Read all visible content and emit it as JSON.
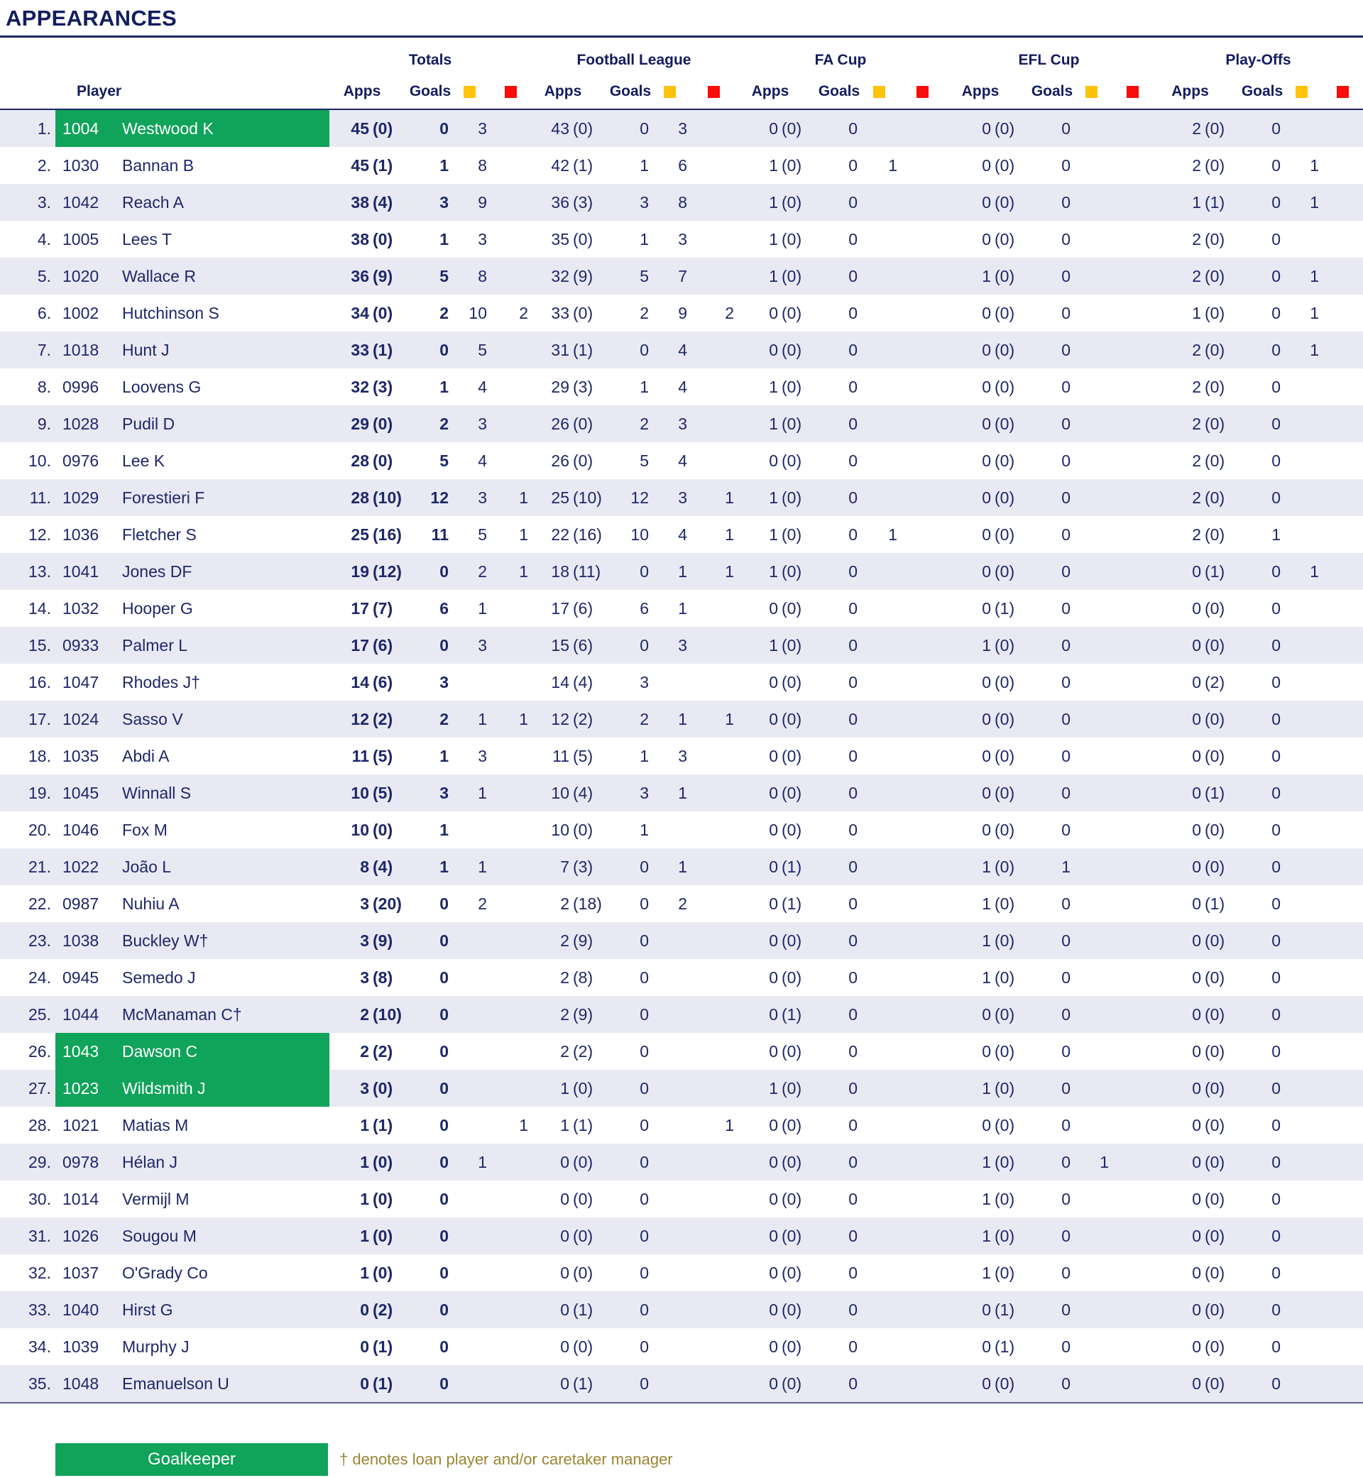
{
  "title": "APPEARANCES",
  "header": {
    "player_label": "Player",
    "apps_label": "Apps",
    "goals_label": "Goals",
    "yellow_card_color": "#fec20a",
    "red_card_color": "#f90d0a",
    "groups": [
      "Totals",
      "Football League",
      "FA Cup",
      "EFL Cup",
      "Play-Offs"
    ]
  },
  "colors": {
    "navy_text": "#1e2769",
    "navy_dark": "#131c5e",
    "row_stripe": "#e9e9f4",
    "goalkeeper_green": "#10a35a",
    "legend_gold": "#9c8532"
  },
  "legend": {
    "goalkeeper_label": "Goalkeeper",
    "note": "† denotes loan player and/or caretaker manager"
  },
  "players": [
    {
      "rank": "1.",
      "id": "1004",
      "name": "Westwood K",
      "gk": true,
      "t": [
        "45",
        "(0)",
        "0",
        "3",
        ""
      ],
      "fl": [
        "43",
        "(0)",
        "0",
        "3",
        ""
      ],
      "fa": [
        "0",
        "(0)",
        "0",
        "",
        ""
      ],
      "efl": [
        "0",
        "(0)",
        "0",
        "",
        ""
      ],
      "po": [
        "2",
        "(0)",
        "0",
        "",
        ""
      ]
    },
    {
      "rank": "2.",
      "id": "1030",
      "name": "Bannan B",
      "gk": false,
      "t": [
        "45",
        "(1)",
        "1",
        "8",
        ""
      ],
      "fl": [
        "42",
        "(1)",
        "1",
        "6",
        ""
      ],
      "fa": [
        "1",
        "(0)",
        "0",
        "1",
        ""
      ],
      "efl": [
        "0",
        "(0)",
        "0",
        "",
        ""
      ],
      "po": [
        "2",
        "(0)",
        "0",
        "1",
        ""
      ]
    },
    {
      "rank": "3.",
      "id": "1042",
      "name": "Reach A",
      "gk": false,
      "t": [
        "38",
        "(4)",
        "3",
        "9",
        ""
      ],
      "fl": [
        "36",
        "(3)",
        "3",
        "8",
        ""
      ],
      "fa": [
        "1",
        "(0)",
        "0",
        "",
        ""
      ],
      "efl": [
        "0",
        "(0)",
        "0",
        "",
        ""
      ],
      "po": [
        "1",
        "(1)",
        "0",
        "1",
        ""
      ]
    },
    {
      "rank": "4.",
      "id": "1005",
      "name": "Lees T",
      "gk": false,
      "t": [
        "38",
        "(0)",
        "1",
        "3",
        ""
      ],
      "fl": [
        "35",
        "(0)",
        "1",
        "3",
        ""
      ],
      "fa": [
        "1",
        "(0)",
        "0",
        "",
        ""
      ],
      "efl": [
        "0",
        "(0)",
        "0",
        "",
        ""
      ],
      "po": [
        "2",
        "(0)",
        "0",
        "",
        ""
      ]
    },
    {
      "rank": "5.",
      "id": "1020",
      "name": "Wallace R",
      "gk": false,
      "t": [
        "36",
        "(9)",
        "5",
        "8",
        ""
      ],
      "fl": [
        "32",
        "(9)",
        "5",
        "7",
        ""
      ],
      "fa": [
        "1",
        "(0)",
        "0",
        "",
        ""
      ],
      "efl": [
        "1",
        "(0)",
        "0",
        "",
        ""
      ],
      "po": [
        "2",
        "(0)",
        "0",
        "1",
        ""
      ]
    },
    {
      "rank": "6.",
      "id": "1002",
      "name": "Hutchinson S",
      "gk": false,
      "t": [
        "34",
        "(0)",
        "2",
        "10",
        "2"
      ],
      "fl": [
        "33",
        "(0)",
        "2",
        "9",
        "2"
      ],
      "fa": [
        "0",
        "(0)",
        "0",
        "",
        ""
      ],
      "efl": [
        "0",
        "(0)",
        "0",
        "",
        ""
      ],
      "po": [
        "1",
        "(0)",
        "0",
        "1",
        ""
      ]
    },
    {
      "rank": "7.",
      "id": "1018",
      "name": "Hunt J",
      "gk": false,
      "t": [
        "33",
        "(1)",
        "0",
        "5",
        ""
      ],
      "fl": [
        "31",
        "(1)",
        "0",
        "4",
        ""
      ],
      "fa": [
        "0",
        "(0)",
        "0",
        "",
        ""
      ],
      "efl": [
        "0",
        "(0)",
        "0",
        "",
        ""
      ],
      "po": [
        "2",
        "(0)",
        "0",
        "1",
        ""
      ]
    },
    {
      "rank": "8.",
      "id": "0996",
      "name": "Loovens G",
      "gk": false,
      "t": [
        "32",
        "(3)",
        "1",
        "4",
        ""
      ],
      "fl": [
        "29",
        "(3)",
        "1",
        "4",
        ""
      ],
      "fa": [
        "1",
        "(0)",
        "0",
        "",
        ""
      ],
      "efl": [
        "0",
        "(0)",
        "0",
        "",
        ""
      ],
      "po": [
        "2",
        "(0)",
        "0",
        "",
        ""
      ]
    },
    {
      "rank": "9.",
      "id": "1028",
      "name": "Pudil D",
      "gk": false,
      "t": [
        "29",
        "(0)",
        "2",
        "3",
        ""
      ],
      "fl": [
        "26",
        "(0)",
        "2",
        "3",
        ""
      ],
      "fa": [
        "1",
        "(0)",
        "0",
        "",
        ""
      ],
      "efl": [
        "0",
        "(0)",
        "0",
        "",
        ""
      ],
      "po": [
        "2",
        "(0)",
        "0",
        "",
        ""
      ]
    },
    {
      "rank": "10.",
      "id": "0976",
      "name": "Lee K",
      "gk": false,
      "t": [
        "28",
        "(0)",
        "5",
        "4",
        ""
      ],
      "fl": [
        "26",
        "(0)",
        "5",
        "4",
        ""
      ],
      "fa": [
        "0",
        "(0)",
        "0",
        "",
        ""
      ],
      "efl": [
        "0",
        "(0)",
        "0",
        "",
        ""
      ],
      "po": [
        "2",
        "(0)",
        "0",
        "",
        ""
      ]
    },
    {
      "rank": "11.",
      "id": "1029",
      "name": "Forestieri F",
      "gk": false,
      "t": [
        "28",
        "(10)",
        "12",
        "3",
        "1"
      ],
      "fl": [
        "25",
        "(10)",
        "12",
        "3",
        "1"
      ],
      "fa": [
        "1",
        "(0)",
        "0",
        "",
        ""
      ],
      "efl": [
        "0",
        "(0)",
        "0",
        "",
        ""
      ],
      "po": [
        "2",
        "(0)",
        "0",
        "",
        ""
      ]
    },
    {
      "rank": "12.",
      "id": "1036",
      "name": "Fletcher S",
      "gk": false,
      "t": [
        "25",
        "(16)",
        "11",
        "5",
        "1"
      ],
      "fl": [
        "22",
        "(16)",
        "10",
        "4",
        "1"
      ],
      "fa": [
        "1",
        "(0)",
        "0",
        "1",
        ""
      ],
      "efl": [
        "0",
        "(0)",
        "0",
        "",
        ""
      ],
      "po": [
        "2",
        "(0)",
        "1",
        "",
        ""
      ]
    },
    {
      "rank": "13.",
      "id": "1041",
      "name": "Jones DF",
      "gk": false,
      "t": [
        "19",
        "(12)",
        "0",
        "2",
        "1"
      ],
      "fl": [
        "18",
        "(11)",
        "0",
        "1",
        "1"
      ],
      "fa": [
        "1",
        "(0)",
        "0",
        "",
        ""
      ],
      "efl": [
        "0",
        "(0)",
        "0",
        "",
        ""
      ],
      "po": [
        "0",
        "(1)",
        "0",
        "1",
        ""
      ]
    },
    {
      "rank": "14.",
      "id": "1032",
      "name": "Hooper G",
      "gk": false,
      "t": [
        "17",
        "(7)",
        "6",
        "1",
        ""
      ],
      "fl": [
        "17",
        "(6)",
        "6",
        "1",
        ""
      ],
      "fa": [
        "0",
        "(0)",
        "0",
        "",
        ""
      ],
      "efl": [
        "0",
        "(1)",
        "0",
        "",
        ""
      ],
      "po": [
        "0",
        "(0)",
        "0",
        "",
        ""
      ]
    },
    {
      "rank": "15.",
      "id": "0933",
      "name": "Palmer L",
      "gk": false,
      "t": [
        "17",
        "(6)",
        "0",
        "3",
        ""
      ],
      "fl": [
        "15",
        "(6)",
        "0",
        "3",
        ""
      ],
      "fa": [
        "1",
        "(0)",
        "0",
        "",
        ""
      ],
      "efl": [
        "1",
        "(0)",
        "0",
        "",
        ""
      ],
      "po": [
        "0",
        "(0)",
        "0",
        "",
        ""
      ]
    },
    {
      "rank": "16.",
      "id": "1047",
      "name": "Rhodes J†",
      "gk": false,
      "t": [
        "14",
        "(6)",
        "3",
        "",
        ""
      ],
      "fl": [
        "14",
        "(4)",
        "3",
        "",
        ""
      ],
      "fa": [
        "0",
        "(0)",
        "0",
        "",
        ""
      ],
      "efl": [
        "0",
        "(0)",
        "0",
        "",
        ""
      ],
      "po": [
        "0",
        "(2)",
        "0",
        "",
        ""
      ]
    },
    {
      "rank": "17.",
      "id": "1024",
      "name": "Sasso V",
      "gk": false,
      "t": [
        "12",
        "(2)",
        "2",
        "1",
        "1"
      ],
      "fl": [
        "12",
        "(2)",
        "2",
        "1",
        "1"
      ],
      "fa": [
        "0",
        "(0)",
        "0",
        "",
        ""
      ],
      "efl": [
        "0",
        "(0)",
        "0",
        "",
        ""
      ],
      "po": [
        "0",
        "(0)",
        "0",
        "",
        ""
      ]
    },
    {
      "rank": "18.",
      "id": "1035",
      "name": "Abdi A",
      "gk": false,
      "t": [
        "11",
        "(5)",
        "1",
        "3",
        ""
      ],
      "fl": [
        "11",
        "(5)",
        "1",
        "3",
        ""
      ],
      "fa": [
        "0",
        "(0)",
        "0",
        "",
        ""
      ],
      "efl": [
        "0",
        "(0)",
        "0",
        "",
        ""
      ],
      "po": [
        "0",
        "(0)",
        "0",
        "",
        ""
      ]
    },
    {
      "rank": "19.",
      "id": "1045",
      "name": "Winnall S",
      "gk": false,
      "t": [
        "10",
        "(5)",
        "3",
        "1",
        ""
      ],
      "fl": [
        "10",
        "(4)",
        "3",
        "1",
        ""
      ],
      "fa": [
        "0",
        "(0)",
        "0",
        "",
        ""
      ],
      "efl": [
        "0",
        "(0)",
        "0",
        "",
        ""
      ],
      "po": [
        "0",
        "(1)",
        "0",
        "",
        ""
      ]
    },
    {
      "rank": "20.",
      "id": "1046",
      "name": "Fox M",
      "gk": false,
      "t": [
        "10",
        "(0)",
        "1",
        "",
        ""
      ],
      "fl": [
        "10",
        "(0)",
        "1",
        "",
        ""
      ],
      "fa": [
        "0",
        "(0)",
        "0",
        "",
        ""
      ],
      "efl": [
        "0",
        "(0)",
        "0",
        "",
        ""
      ],
      "po": [
        "0",
        "(0)",
        "0",
        "",
        ""
      ]
    },
    {
      "rank": "21.",
      "id": "1022",
      "name": "João L",
      "gk": false,
      "t": [
        "8",
        "(4)",
        "1",
        "1",
        ""
      ],
      "fl": [
        "7",
        "(3)",
        "0",
        "1",
        ""
      ],
      "fa": [
        "0",
        "(1)",
        "0",
        "",
        ""
      ],
      "efl": [
        "1",
        "(0)",
        "1",
        "",
        ""
      ],
      "po": [
        "0",
        "(0)",
        "0",
        "",
        ""
      ]
    },
    {
      "rank": "22.",
      "id": "0987",
      "name": "Nuhiu A",
      "gk": false,
      "t": [
        "3",
        "(20)",
        "0",
        "2",
        ""
      ],
      "fl": [
        "2",
        "(18)",
        "0",
        "2",
        ""
      ],
      "fa": [
        "0",
        "(1)",
        "0",
        "",
        ""
      ],
      "efl": [
        "1",
        "(0)",
        "0",
        "",
        ""
      ],
      "po": [
        "0",
        "(1)",
        "0",
        "",
        ""
      ]
    },
    {
      "rank": "23.",
      "id": "1038",
      "name": "Buckley W†",
      "gk": false,
      "t": [
        "3",
        "(9)",
        "0",
        "",
        ""
      ],
      "fl": [
        "2",
        "(9)",
        "0",
        "",
        ""
      ],
      "fa": [
        "0",
        "(0)",
        "0",
        "",
        ""
      ],
      "efl": [
        "1",
        "(0)",
        "0",
        "",
        ""
      ],
      "po": [
        "0",
        "(0)",
        "0",
        "",
        ""
      ]
    },
    {
      "rank": "24.",
      "id": "0945",
      "name": "Semedo J",
      "gk": false,
      "t": [
        "3",
        "(8)",
        "0",
        "",
        ""
      ],
      "fl": [
        "2",
        "(8)",
        "0",
        "",
        ""
      ],
      "fa": [
        "0",
        "(0)",
        "0",
        "",
        ""
      ],
      "efl": [
        "1",
        "(0)",
        "0",
        "",
        ""
      ],
      "po": [
        "0",
        "(0)",
        "0",
        "",
        ""
      ]
    },
    {
      "rank": "25.",
      "id": "1044",
      "name": "McManaman C†",
      "gk": false,
      "t": [
        "2",
        "(10)",
        "0",
        "",
        ""
      ],
      "fl": [
        "2",
        "(9)",
        "0",
        "",
        ""
      ],
      "fa": [
        "0",
        "(1)",
        "0",
        "",
        ""
      ],
      "efl": [
        "0",
        "(0)",
        "0",
        "",
        ""
      ],
      "po": [
        "0",
        "(0)",
        "0",
        "",
        ""
      ]
    },
    {
      "rank": "26.",
      "id": "1043",
      "name": "Dawson C",
      "gk": true,
      "t": [
        "2",
        "(2)",
        "0",
        "",
        ""
      ],
      "fl": [
        "2",
        "(2)",
        "0",
        "",
        ""
      ],
      "fa": [
        "0",
        "(0)",
        "0",
        "",
        ""
      ],
      "efl": [
        "0",
        "(0)",
        "0",
        "",
        ""
      ],
      "po": [
        "0",
        "(0)",
        "0",
        "",
        ""
      ]
    },
    {
      "rank": "27.",
      "id": "1023",
      "name": "Wildsmith J",
      "gk": true,
      "t": [
        "3",
        "(0)",
        "0",
        "",
        ""
      ],
      "fl": [
        "1",
        "(0)",
        "0",
        "",
        ""
      ],
      "fa": [
        "1",
        "(0)",
        "0",
        "",
        ""
      ],
      "efl": [
        "1",
        "(0)",
        "0",
        "",
        ""
      ],
      "po": [
        "0",
        "(0)",
        "0",
        "",
        ""
      ]
    },
    {
      "rank": "28.",
      "id": "1021",
      "name": "Matias M",
      "gk": false,
      "t": [
        "1",
        "(1)",
        "0",
        "",
        "1"
      ],
      "fl": [
        "1",
        "(1)",
        "0",
        "",
        "1"
      ],
      "fa": [
        "0",
        "(0)",
        "0",
        "",
        ""
      ],
      "efl": [
        "0",
        "(0)",
        "0",
        "",
        ""
      ],
      "po": [
        "0",
        "(0)",
        "0",
        "",
        ""
      ]
    },
    {
      "rank": "29.",
      "id": "0978",
      "name": "Hélan J",
      "gk": false,
      "t": [
        "1",
        "(0)",
        "0",
        "1",
        ""
      ],
      "fl": [
        "0",
        "(0)",
        "0",
        "",
        ""
      ],
      "fa": [
        "0",
        "(0)",
        "0",
        "",
        ""
      ],
      "efl": [
        "1",
        "(0)",
        "0",
        "1",
        ""
      ],
      "po": [
        "0",
        "(0)",
        "0",
        "",
        ""
      ]
    },
    {
      "rank": "30.",
      "id": "1014",
      "name": "Vermijl M",
      "gk": false,
      "t": [
        "1",
        "(0)",
        "0",
        "",
        ""
      ],
      "fl": [
        "0",
        "(0)",
        "0",
        "",
        ""
      ],
      "fa": [
        "0",
        "(0)",
        "0",
        "",
        ""
      ],
      "efl": [
        "1",
        "(0)",
        "0",
        "",
        ""
      ],
      "po": [
        "0",
        "(0)",
        "0",
        "",
        ""
      ]
    },
    {
      "rank": "31.",
      "id": "1026",
      "name": "Sougou M",
      "gk": false,
      "t": [
        "1",
        "(0)",
        "0",
        "",
        ""
      ],
      "fl": [
        "0",
        "(0)",
        "0",
        "",
        ""
      ],
      "fa": [
        "0",
        "(0)",
        "0",
        "",
        ""
      ],
      "efl": [
        "1",
        "(0)",
        "0",
        "",
        ""
      ],
      "po": [
        "0",
        "(0)",
        "0",
        "",
        ""
      ]
    },
    {
      "rank": "32.",
      "id": "1037",
      "name": "O'Grady Co",
      "gk": false,
      "t": [
        "1",
        "(0)",
        "0",
        "",
        ""
      ],
      "fl": [
        "0",
        "(0)",
        "0",
        "",
        ""
      ],
      "fa": [
        "0",
        "(0)",
        "0",
        "",
        ""
      ],
      "efl": [
        "1",
        "(0)",
        "0",
        "",
        ""
      ],
      "po": [
        "0",
        "(0)",
        "0",
        "",
        ""
      ]
    },
    {
      "rank": "33.",
      "id": "1040",
      "name": "Hirst G",
      "gk": false,
      "t": [
        "0",
        "(2)",
        "0",
        "",
        ""
      ],
      "fl": [
        "0",
        "(1)",
        "0",
        "",
        ""
      ],
      "fa": [
        "0",
        "(0)",
        "0",
        "",
        ""
      ],
      "efl": [
        "0",
        "(1)",
        "0",
        "",
        ""
      ],
      "po": [
        "0",
        "(0)",
        "0",
        "",
        ""
      ]
    },
    {
      "rank": "34.",
      "id": "1039",
      "name": "Murphy J",
      "gk": false,
      "t": [
        "0",
        "(1)",
        "0",
        "",
        ""
      ],
      "fl": [
        "0",
        "(0)",
        "0",
        "",
        ""
      ],
      "fa": [
        "0",
        "(0)",
        "0",
        "",
        ""
      ],
      "efl": [
        "0",
        "(1)",
        "0",
        "",
        ""
      ],
      "po": [
        "0",
        "(0)",
        "0",
        "",
        ""
      ]
    },
    {
      "rank": "35.",
      "id": "1048",
      "name": "Emanuelson U",
      "gk": false,
      "t": [
        "0",
        "(1)",
        "0",
        "",
        ""
      ],
      "fl": [
        "0",
        "(1)",
        "0",
        "",
        ""
      ],
      "fa": [
        "0",
        "(0)",
        "0",
        "",
        ""
      ],
      "efl": [
        "0",
        "(0)",
        "0",
        "",
        ""
      ],
      "po": [
        "0",
        "(0)",
        "0",
        "",
        ""
      ]
    }
  ]
}
